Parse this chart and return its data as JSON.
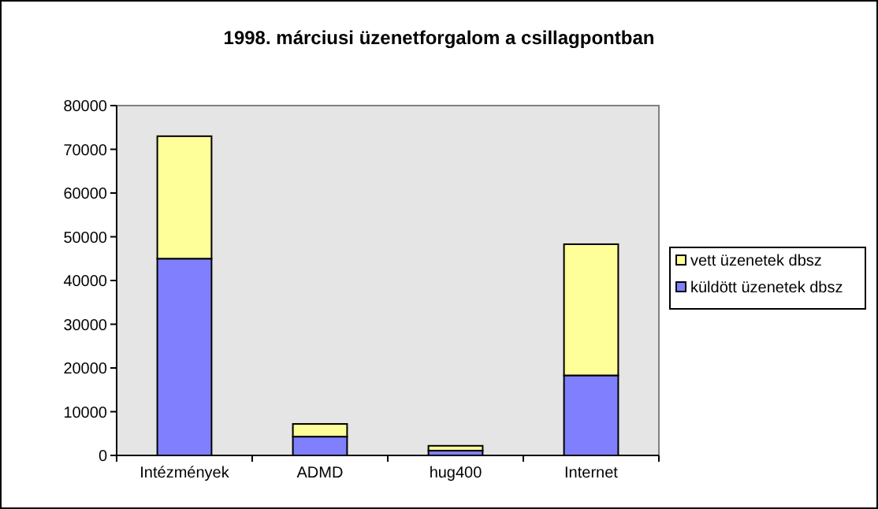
{
  "chart_data": {
    "type": "bar",
    "title": "1998. márciusi üzenetforgalom a csillagpontban",
    "categories": [
      "Intézmények",
      "ADMD",
      "hug400",
      "Internet"
    ],
    "stacked": true,
    "series": [
      {
        "name": "küldött üzenetek dbsz",
        "color": "#8080ff",
        "values": [
          45000,
          4300,
          1100,
          18300
        ]
      },
      {
        "name": "vett üzenetek dbsz",
        "color": "#ffff99",
        "values": [
          28000,
          2900,
          1100,
          30000
        ]
      }
    ],
    "ylim": [
      0,
      80000
    ],
    "yticks": [
      0,
      10000,
      20000,
      30000,
      40000,
      50000,
      60000,
      70000,
      80000
    ],
    "grid": false,
    "legend": "right"
  }
}
